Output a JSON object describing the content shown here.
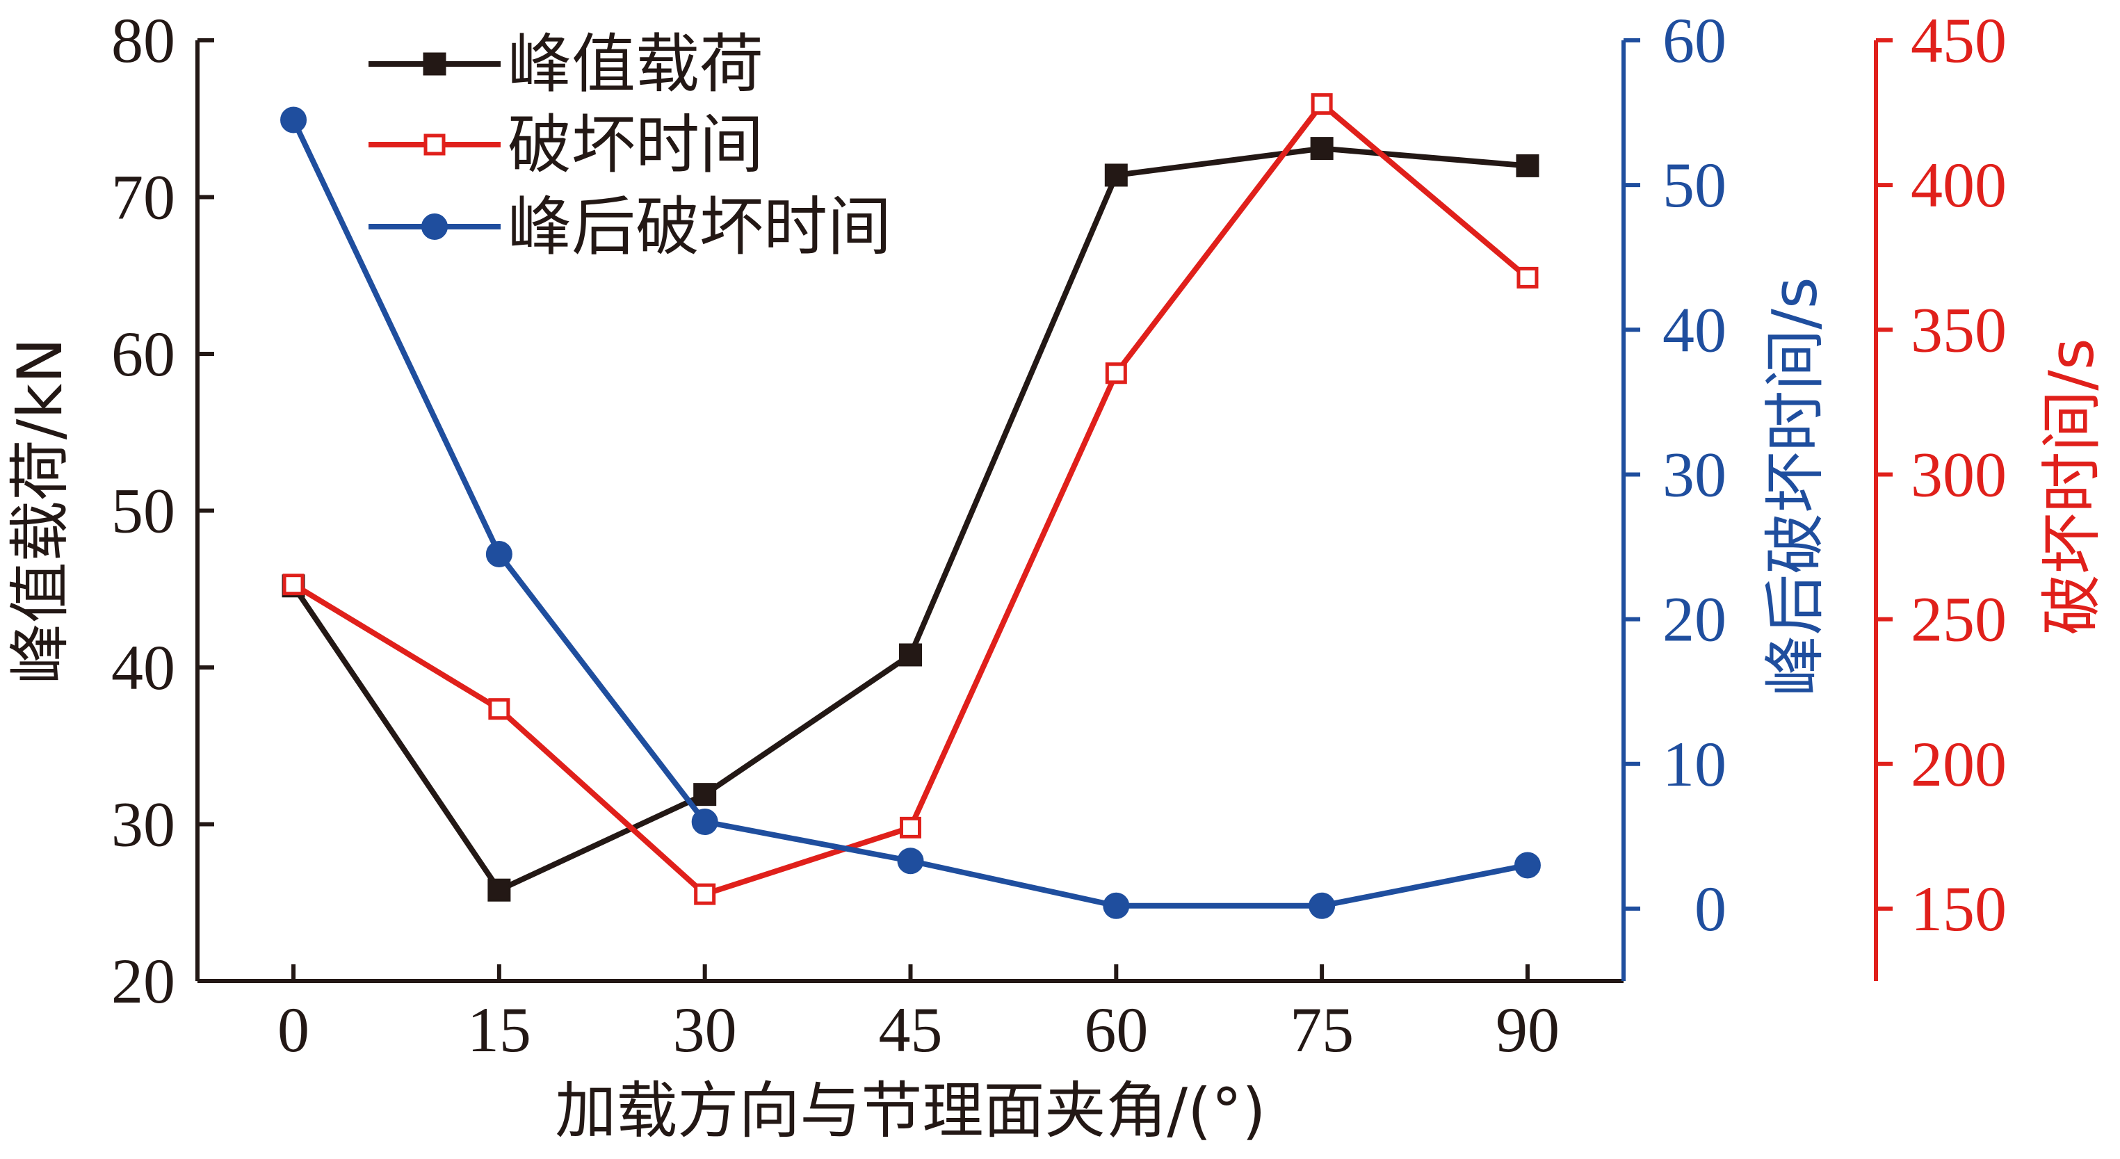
{
  "chart_data": {
    "type": "line",
    "xlabel": "加载方向与节理面夹角/(°)",
    "x": [
      0,
      15,
      30,
      45,
      60,
      75,
      90
    ],
    "x_ticks": [
      "0",
      "15",
      "30",
      "45",
      "60",
      "75",
      "90"
    ],
    "xlim": [
      -7,
      97
    ],
    "legend_position": "top-left",
    "grid": false,
    "axes": {
      "left": {
        "label": "峰值载荷/kN",
        "ylim": [
          20,
          80
        ],
        "ticks": [
          "20",
          "30",
          "40",
          "50",
          "60",
          "70",
          "80"
        ],
        "color": "#231815"
      },
      "right1": {
        "label": "峰后破坏时间/s",
        "ylim": [
          -5,
          60
        ],
        "ticks": [
          "0",
          "10",
          "20",
          "30",
          "40",
          "50",
          "60"
        ],
        "color": "#1f4e9e"
      },
      "right2": {
        "label": "破坏时间/s",
        "ylim": [
          125,
          450
        ],
        "ticks": [
          "150",
          "200",
          "250",
          "300",
          "350",
          "400",
          "450"
        ],
        "color": "#e0201b"
      }
    },
    "series": [
      {
        "name": "峰值载荷",
        "axis": "left",
        "color": "#231815",
        "marker": "square-filled",
        "values": [
          45.2,
          25.8,
          31.9,
          40.8,
          71.4,
          73.1,
          72.0
        ]
      },
      {
        "name": "破坏时间",
        "axis": "right2",
        "color": "#e0201b",
        "marker": "square-open",
        "values": [
          262,
          219,
          155,
          178,
          335,
          428,
          368
        ]
      },
      {
        "name": "峰后破坏时间",
        "axis": "right1",
        "color": "#1f4e9e",
        "marker": "circle-filled",
        "values": [
          54.5,
          24.5,
          6,
          3.3,
          0.2,
          0.2,
          3
        ]
      }
    ]
  }
}
